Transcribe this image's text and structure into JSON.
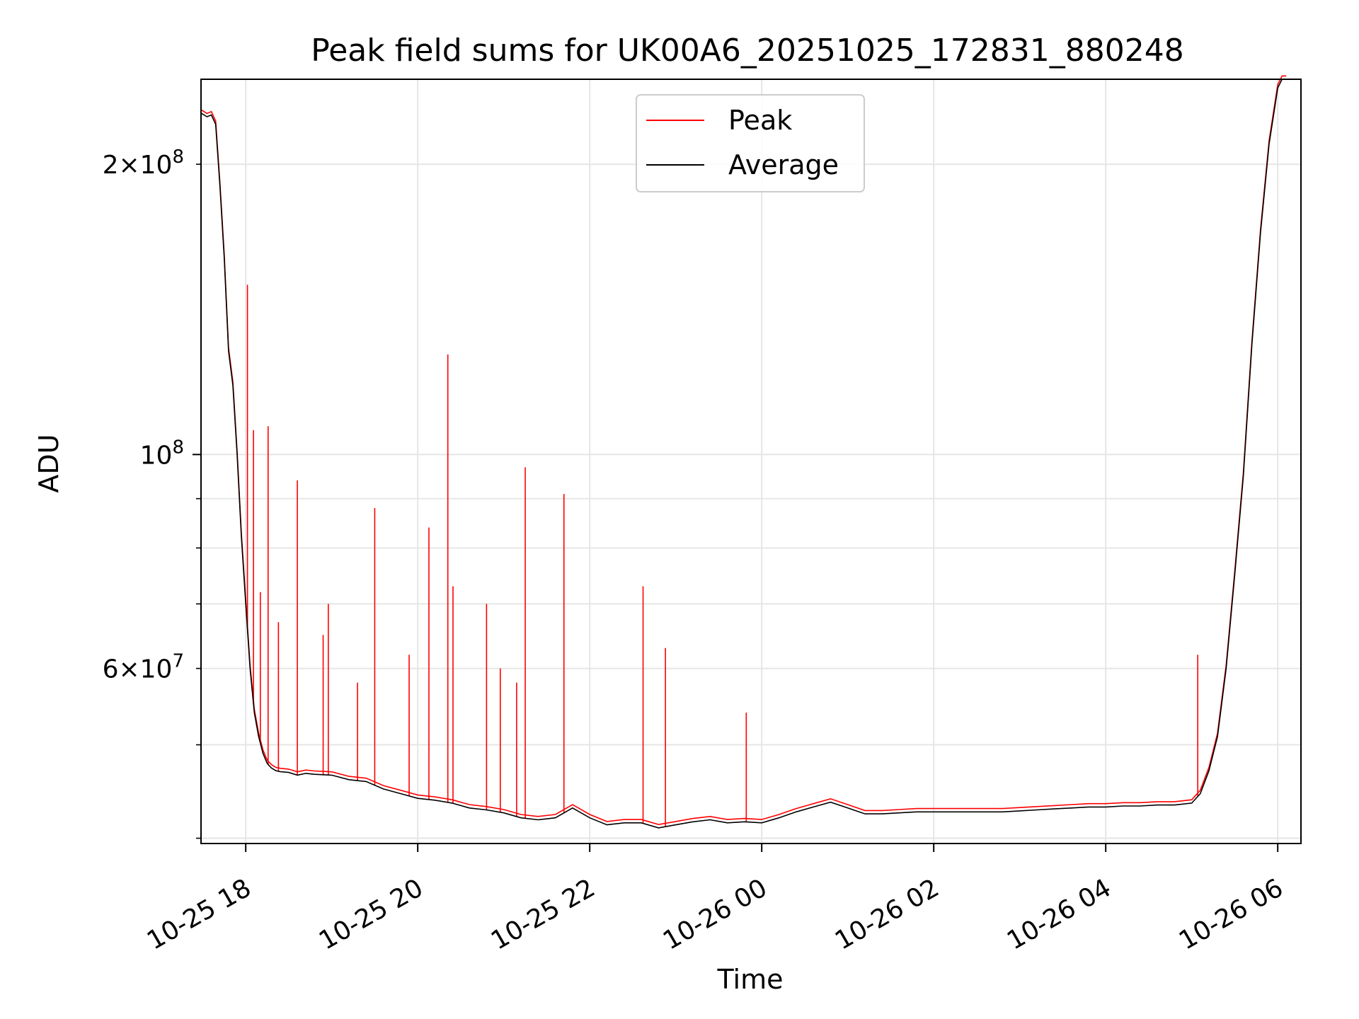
{
  "chart_data": {
    "type": "line",
    "title": "Peak field sums for UK00A6_20251025_172831_880248",
    "xlabel": "Time",
    "ylabel": "ADU",
    "y_scale": "log",
    "ylim": [
      39500000,
      245000000
    ],
    "xlim_hours_since_2025_10_25_00_00": [
      17.48,
      30.27
    ],
    "x_ticks": [
      {
        "label": "10-25 18",
        "value": 18
      },
      {
        "label": "10-25 20",
        "value": 20
      },
      {
        "label": "10-25 22",
        "value": 22
      },
      {
        "label": "10-26 00",
        "value": 24
      },
      {
        "label": "10-26 02",
        "value": 26
      },
      {
        "label": "10-26 04",
        "value": 28
      },
      {
        "label": "10-26 06",
        "value": 30
      }
    ],
    "y_major_ticks": [
      {
        "label_base": "10",
        "label_exponent": "8",
        "label_prefix": "",
        "value": 100000000
      }
    ],
    "y_minor_ticks": [
      {
        "label_base": "10",
        "label_exponent": "7",
        "label_prefix": "6×",
        "value": 60000000
      },
      {
        "label_base": "10",
        "label_exponent": "8",
        "label_prefix": "2×",
        "value": 200000000
      }
    ],
    "y_minor_unlabeled": [
      40000000,
      50000000,
      70000000,
      80000000,
      90000000
    ],
    "legend": {
      "placement": "top-center",
      "entries": [
        {
          "name": "Peak",
          "color": "#ff0000"
        },
        {
          "name": "Average",
          "color": "#000000"
        }
      ]
    },
    "series": [
      {
        "name": "Average",
        "color": "#000000",
        "x": [
          17.48,
          17.55,
          17.6,
          17.65,
          17.7,
          17.75,
          17.8,
          17.85,
          17.9,
          17.95,
          18.0,
          18.05,
          18.1,
          18.15,
          18.2,
          18.25,
          18.3,
          18.35,
          18.4,
          18.5,
          18.6,
          18.7,
          18.8,
          19.0,
          19.2,
          19.4,
          19.6,
          19.8,
          20.0,
          20.2,
          20.4,
          20.6,
          20.8,
          21.0,
          21.2,
          21.4,
          21.6,
          21.8,
          22.0,
          22.2,
          22.4,
          22.6,
          22.8,
          23.0,
          23.2,
          23.4,
          23.6,
          23.8,
          24.0,
          24.2,
          24.4,
          24.6,
          24.8,
          25.0,
          25.2,
          25.4,
          25.6,
          25.8,
          26.0,
          26.2,
          26.4,
          26.6,
          26.8,
          27.0,
          27.2,
          27.4,
          27.6,
          27.8,
          28.0,
          28.2,
          28.4,
          28.6,
          28.8,
          29.0,
          29.1,
          29.2,
          29.3,
          29.4,
          29.5,
          29.6,
          29.7,
          29.8,
          29.9,
          30.0,
          30.05,
          30.1
        ],
        "values": [
          226000000,
          224000000,
          225000000,
          220000000,
          190000000,
          160000000,
          128000000,
          118000000,
          100000000,
          82000000,
          70000000,
          60000000,
          54000000,
          51000000,
          49000000,
          47800000,
          47300000,
          47000000,
          46900000,
          46800000,
          46500000,
          46700000,
          46600000,
          46500000,
          46000000,
          45800000,
          45000000,
          44500000,
          44000000,
          43800000,
          43500000,
          43000000,
          42800000,
          42500000,
          42000000,
          41800000,
          42000000,
          43000000,
          42000000,
          41300000,
          41500000,
          41500000,
          41000000,
          41300000,
          41600000,
          41800000,
          41500000,
          41600000,
          41500000,
          42000000,
          42600000,
          43100000,
          43600000,
          43000000,
          42400000,
          42400000,
          42500000,
          42600000,
          42600000,
          42600000,
          42600000,
          42600000,
          42600000,
          42700000,
          42800000,
          42900000,
          43000000,
          43100000,
          43100000,
          43200000,
          43200000,
          43300000,
          43300000,
          43500000,
          44500000,
          47000000,
          51000000,
          60000000,
          75000000,
          95000000,
          130000000,
          170000000,
          210000000,
          240000000,
          245000000,
          245000000
        ]
      },
      {
        "name": "Peak",
        "color": "#ff0000",
        "spikes": [
          {
            "x": 18.02,
            "value": 150000000
          },
          {
            "x": 18.09,
            "value": 106000000
          },
          {
            "x": 18.17,
            "value": 72000000
          },
          {
            "x": 18.26,
            "value": 107000000
          },
          {
            "x": 18.38,
            "value": 67000000
          },
          {
            "x": 18.6,
            "value": 94000000
          },
          {
            "x": 18.9,
            "value": 65000000
          },
          {
            "x": 18.96,
            "value": 70000000
          },
          {
            "x": 19.3,
            "value": 58000000
          },
          {
            "x": 19.5,
            "value": 88000000
          },
          {
            "x": 19.9,
            "value": 62000000
          },
          {
            "x": 20.13,
            "value": 84000000
          },
          {
            "x": 20.35,
            "value": 127000000
          },
          {
            "x": 20.41,
            "value": 73000000
          },
          {
            "x": 20.8,
            "value": 70000000
          },
          {
            "x": 20.96,
            "value": 60000000
          },
          {
            "x": 21.15,
            "value": 58000000
          },
          {
            "x": 21.25,
            "value": 97000000
          },
          {
            "x": 21.7,
            "value": 91000000
          },
          {
            "x": 22.62,
            "value": 73000000
          },
          {
            "x": 22.88,
            "value": 63000000
          },
          {
            "x": 23.82,
            "value": 54000000
          },
          {
            "x": 29.07,
            "value": 62000000
          }
        ]
      }
    ]
  }
}
